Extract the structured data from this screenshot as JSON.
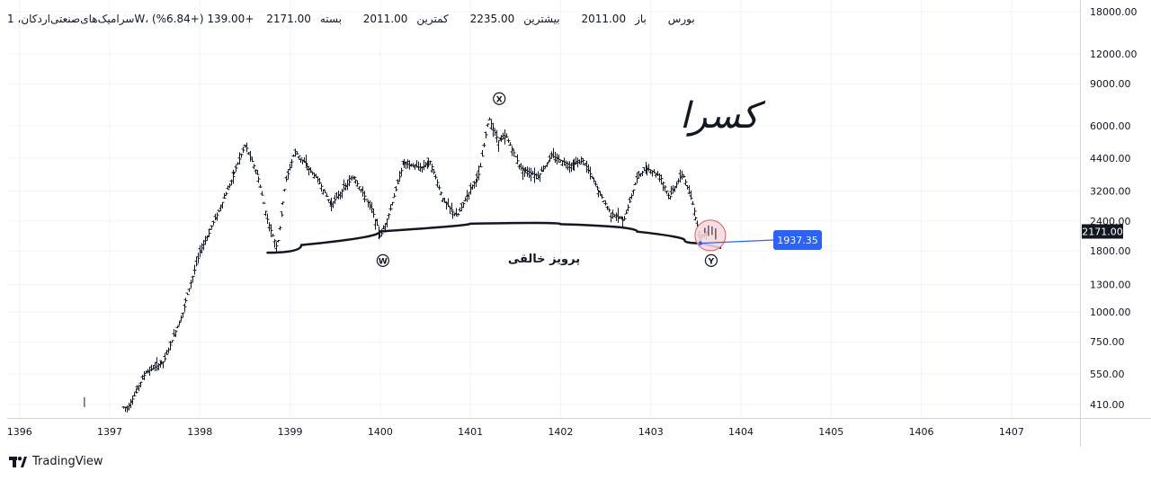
{
  "header": {
    "symbol": "سرامیک‌های‌صنعتی‌اردکان، 1W، بورس",
    "open_label": "باز",
    "open_value": "2011.00",
    "high_label": "بیشترین",
    "high_value": "2235.00",
    "low_label": "کمترین",
    "low_value": "2011.00",
    "close_label": "بسته",
    "close_value": "2171.00",
    "change": "+139.00 (+6.84%)"
  },
  "footer": {
    "brand": "TradingView"
  },
  "colors": {
    "price_tag": "#131722",
    "callout": "#2962ff",
    "candle": "#131722",
    "grid": "#f0f3fa",
    "curve": "#131722",
    "circle_fill": "#f8d7dc",
    "circle_stroke": "#e0707e"
  },
  "chart_data": {
    "type": "candlestick",
    "scale": "log",
    "ylim": [
      360,
      19000
    ],
    "y_ticks": [
      "410.00",
      "550.00",
      "750.00",
      "1000.00",
      "1300.00",
      "1800.00",
      "2400.00",
      "3200.00",
      "4400.00",
      "6000.00",
      "9000.00",
      "12000.00",
      "18000.00"
    ],
    "x_ticks": [
      "1396",
      "1397",
      "1398",
      "1399",
      "1400",
      "1401",
      "1402",
      "1403",
      "1404",
      "1405",
      "1406",
      "1407"
    ],
    "last_price": "2171.00",
    "callout_value": "1937.35",
    "annotations": {
      "pattern_label": "پرویز خالقی",
      "author_mark": "کسرا",
      "point_x": "X",
      "point_w": "W",
      "point_y": "Y"
    },
    "trend_path": [
      {
        "t": 1396.8,
        "p": 390
      },
      {
        "t": 1397.2,
        "p": 400
      },
      {
        "t": 1397.4,
        "p": 560
      },
      {
        "t": 1397.6,
        "p": 620
      },
      {
        "t": 1397.8,
        "p": 980
      },
      {
        "t": 1398.0,
        "p": 1800
      },
      {
        "t": 1398.2,
        "p": 2600
      },
      {
        "t": 1398.4,
        "p": 4000
      },
      {
        "t": 1398.5,
        "p": 5000
      },
      {
        "t": 1398.65,
        "p": 3600
      },
      {
        "t": 1398.75,
        "p": 2400
      },
      {
        "t": 1398.85,
        "p": 1850
      },
      {
        "t": 1398.95,
        "p": 3500
      },
      {
        "t": 1399.05,
        "p": 4700
      },
      {
        "t": 1399.3,
        "p": 3600
      },
      {
        "t": 1399.45,
        "p": 2800
      },
      {
        "t": 1399.6,
        "p": 3300
      },
      {
        "t": 1399.7,
        "p": 3700
      },
      {
        "t": 1399.9,
        "p": 2700
      },
      {
        "t": 1400.0,
        "p": 2050
      },
      {
        "t": 1400.1,
        "p": 2600
      },
      {
        "t": 1400.25,
        "p": 4200
      },
      {
        "t": 1400.45,
        "p": 4000
      },
      {
        "t": 1400.55,
        "p": 4300
      },
      {
        "t": 1400.7,
        "p": 2900
      },
      {
        "t": 1400.85,
        "p": 2500
      },
      {
        "t": 1401.0,
        "p": 3300
      },
      {
        "t": 1401.1,
        "p": 3800
      },
      {
        "t": 1401.2,
        "p": 6500
      },
      {
        "t": 1401.3,
        "p": 5200
      },
      {
        "t": 1401.4,
        "p": 5400
      },
      {
        "t": 1401.55,
        "p": 4000
      },
      {
        "t": 1401.75,
        "p": 3700
      },
      {
        "t": 1401.9,
        "p": 4500
      },
      {
        "t": 1402.1,
        "p": 4100
      },
      {
        "t": 1402.25,
        "p": 4300
      },
      {
        "t": 1402.4,
        "p": 3300
      },
      {
        "t": 1402.55,
        "p": 2600
      },
      {
        "t": 1402.7,
        "p": 2400
      },
      {
        "t": 1402.85,
        "p": 3700
      },
      {
        "t": 1402.95,
        "p": 4000
      },
      {
        "t": 1403.1,
        "p": 3700
      },
      {
        "t": 1403.2,
        "p": 3000
      },
      {
        "t": 1403.35,
        "p": 3800
      },
      {
        "t": 1403.45,
        "p": 2900
      },
      {
        "t": 1403.55,
        "p": 2050
      },
      {
        "t": 1403.62,
        "p": 2171
      }
    ],
    "arc": [
      {
        "t": 1398.75,
        "p": 1770
      },
      {
        "t": 1399.5,
        "p": 2050
      },
      {
        "t": 1400.5,
        "p": 2300
      },
      {
        "t": 1401.5,
        "p": 2380
      },
      {
        "t": 1402.5,
        "p": 2280
      },
      {
        "t": 1403.2,
        "p": 2060
      },
      {
        "t": 1403.55,
        "p": 1937.35
      }
    ],
    "marker_x": {
      "t": 1401.32,
      "p": 7800
    },
    "marker_w": {
      "t": 1400.03,
      "p": 1640
    },
    "marker_y": {
      "t": 1403.67,
      "p": 1640
    },
    "circle_center": {
      "t": 1403.66,
      "p": 2090
    },
    "arrow_to": {
      "t": 1403.78,
      "p": 1850
    }
  }
}
